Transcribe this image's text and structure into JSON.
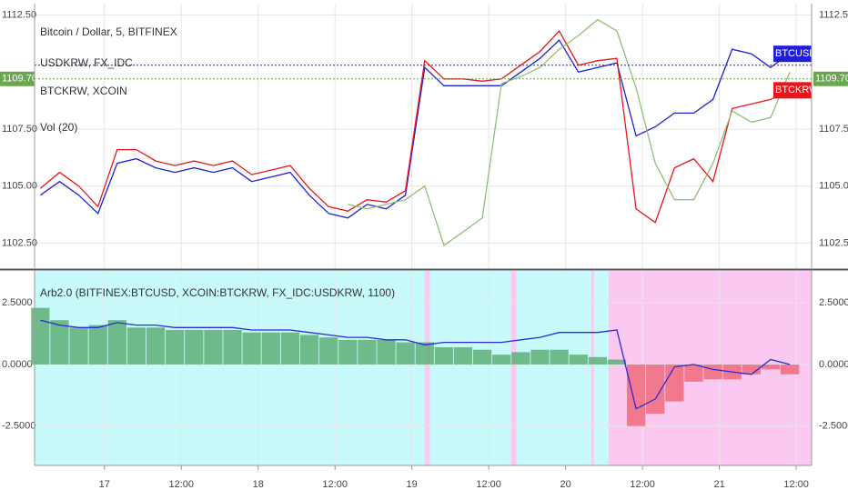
{
  "chart_data": [
    {
      "type": "line",
      "title": "Bitcoin / Dollar, 5, BITFINEX",
      "legend": [
        "USDKRW, FX_IDC",
        "BTCKRW, XCOIN",
        "Vol (20)"
      ],
      "x": [
        14,
        17,
        20,
        23,
        26,
        29,
        32,
        35,
        38,
        41,
        44,
        47,
        50,
        53,
        56,
        59,
        62,
        65,
        68,
        71,
        74,
        77,
        80,
        83,
        86,
        89,
        92,
        95,
        98,
        101,
        104,
        107,
        110,
        113,
        116,
        119,
        122,
        125,
        128,
        131
      ],
      "series": [
        {
          "name": "BTCUSD",
          "color": "#1f1fd6",
          "values": [
            1104.6,
            1105.2,
            1104.6,
            1103.8,
            1106.0,
            1106.2,
            1105.8,
            1105.6,
            1105.8,
            1105.6,
            1105.8,
            1105.2,
            1105.4,
            1105.6,
            1104.6,
            1103.8,
            1103.6,
            1104.2,
            1104.0,
            1104.6,
            1110.2,
            1109.4,
            1109.4,
            1109.4,
            1109.4,
            1110.0,
            1110.6,
            1111.4,
            1110.0,
            1110.2,
            1110.4,
            1107.2,
            1107.6,
            1108.2,
            1108.2,
            1108.8,
            1111.0,
            1110.8,
            1110.2,
            1110.8
          ]
        },
        {
          "name": "BTCKRW",
          "color": "#e8151b",
          "values": [
            1104.9,
            1105.6,
            1105.0,
            1104.1,
            1106.6,
            1106.6,
            1106.1,
            1105.9,
            1106.1,
            1105.9,
            1106.1,
            1105.5,
            1105.7,
            1105.9,
            1104.9,
            1104.1,
            1103.9,
            1104.4,
            1104.3,
            1104.8,
            1110.5,
            1109.7,
            1109.7,
            1109.6,
            1109.7,
            1110.3,
            1110.9,
            1111.8,
            1110.3,
            1110.5,
            1110.6,
            1104.0,
            1103.4,
            1105.8,
            1106.2,
            1105.2,
            1108.4,
            1108.6,
            1108.8,
            1109.2
          ]
        },
        {
          "name": "USDKRW",
          "color": "#8fbf77",
          "values": [
            null,
            null,
            null,
            null,
            null,
            null,
            null,
            null,
            null,
            null,
            null,
            null,
            null,
            null,
            null,
            null,
            1104.2,
            1104.0,
            1104.2,
            1104.4,
            1105.0,
            1102.4,
            1103.0,
            1103.6,
            1109.5,
            1109.8,
            1110.2,
            1111.0,
            1111.6,
            1112.3,
            1111.8,
            1109.3,
            1106.0,
            1104.4,
            1104.4,
            1106.0,
            1108.3,
            1107.8,
            1108.0,
            1110.0
          ]
        }
      ],
      "price_lines": [
        {
          "value": 1110.3,
          "color": "#1f1fd6"
        },
        {
          "value": 1109.7,
          "label": "1109.70",
          "color": "#6aa84f"
        }
      ],
      "xlim": [
        13.1,
        134.4
      ],
      "ylim": [
        1101.4,
        1113.0
      ],
      "yticks": [
        {
          "value": 1102.5,
          "label": "1102.50"
        },
        {
          "value": 1105,
          "label": "1105.00"
        },
        {
          "value": 1107.5,
          "label": "1107.50"
        },
        {
          "value": 1112.5,
          "label": "1112.50"
        }
      ],
      "grid": true
    },
    {
      "type": "bar",
      "title": "Arb2.0 (BITFINEX:BTCUSD, XCOIN:BTCKRW, FX_IDC:USDKRW, 1100)",
      "x": [
        14,
        17,
        20,
        23,
        26,
        29,
        32,
        35,
        38,
        41,
        44,
        47,
        50,
        53,
        56,
        59,
        62,
        65,
        68,
        71,
        74,
        77,
        80,
        83,
        86,
        89,
        92,
        95,
        98,
        101,
        104,
        107,
        110,
        113,
        116,
        119,
        122,
        125,
        128,
        131
      ],
      "values": [
        2.3,
        1.8,
        1.5,
        1.6,
        1.8,
        1.5,
        1.5,
        1.4,
        1.4,
        1.4,
        1.4,
        1.3,
        1.3,
        1.3,
        1.2,
        1.1,
        1.0,
        1.0,
        1.0,
        0.9,
        0.9,
        0.7,
        0.7,
        0.6,
        0.4,
        0.5,
        0.6,
        0.6,
        0.4,
        0.3,
        0.2,
        -2.5,
        -2.0,
        -1.5,
        -0.7,
        -0.6,
        -0.6,
        -0.4,
        -0.2,
        -0.4
      ],
      "colors": {
        "positive": "#5fae77",
        "negative": "#f06a7c"
      },
      "series": [
        {
          "color": "#2b2bd9",
          "values": [
            1.8,
            1.6,
            1.5,
            1.5,
            1.7,
            1.6,
            1.6,
            1.5,
            1.5,
            1.5,
            1.5,
            1.4,
            1.4,
            1.4,
            1.3,
            1.2,
            1.1,
            1.1,
            1.0,
            1.0,
            0.8,
            0.9,
            0.9,
            0.9,
            0.9,
            1.0,
            1.1,
            1.3,
            1.3,
            1.3,
            1.4,
            -1.8,
            -1.4,
            -0.1,
            0.0,
            -0.2,
            -0.3,
            -0.4,
            0.2,
            0.0
          ]
        }
      ],
      "background": "#c8fafc",
      "bands": {
        "color": "#fbc8f2",
        "ranges": [
          [
            74.0,
            74.8
          ],
          [
            87.5,
            88.3
          ],
          [
            100.0,
            100.4
          ],
          [
            102.7,
            134.4
          ]
        ]
      },
      "xlim": [
        13.1,
        134.4
      ],
      "ylim": [
        -4.1,
        3.8
      ],
      "yticks": [
        {
          "value": -2.5,
          "label": "-2.5000"
        },
        {
          "value": 0,
          "label": "0.0000"
        },
        {
          "value": 2.5,
          "label": "2.5000"
        }
      ],
      "xticks": [
        {
          "value": 24,
          "label": "17"
        },
        {
          "value": 36,
          "label": "12:00"
        },
        {
          "value": 48,
          "label": "18"
        },
        {
          "value": 60,
          "label": "12:00"
        },
        {
          "value": 72,
          "label": "19"
        },
        {
          "value": 84,
          "label": "12:00"
        },
        {
          "value": 96,
          "label": "20"
        },
        {
          "value": 108,
          "label": "12:00"
        },
        {
          "value": 120,
          "label": "21"
        },
        {
          "value": 132,
          "label": "12:00"
        }
      ],
      "grid": true
    }
  ]
}
